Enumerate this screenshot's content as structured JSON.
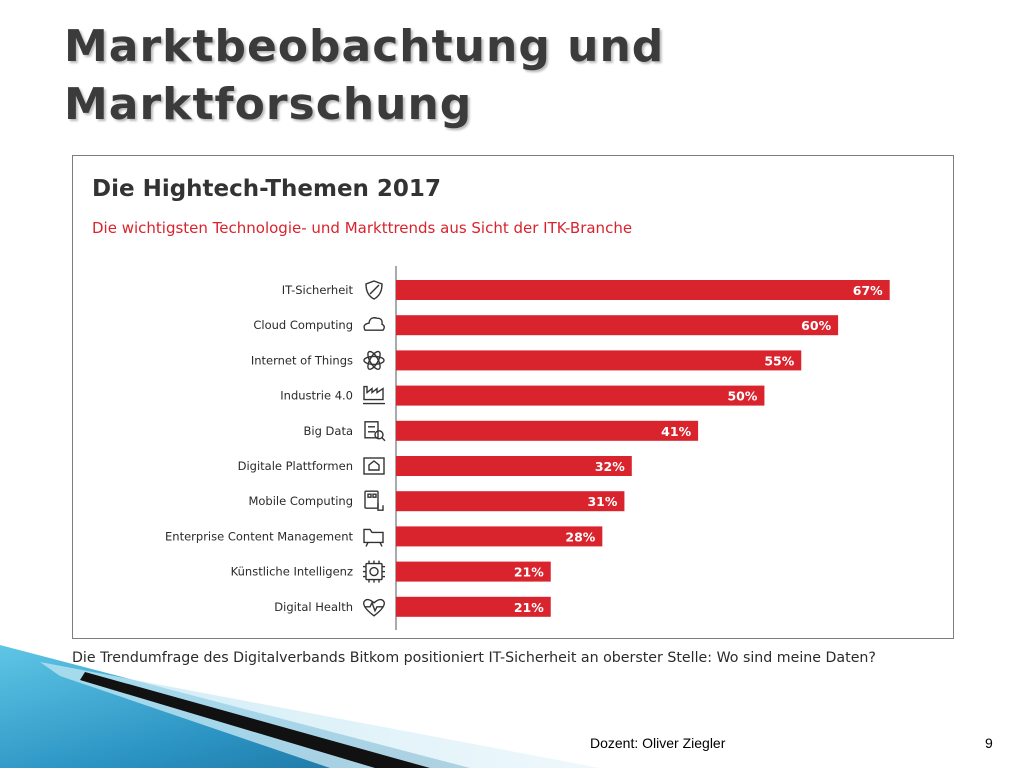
{
  "slide": {
    "title_line1": "Marktbeobachtung und",
    "title_line2": "Marktforschung",
    "caption": "Die Trendumfrage des Digitalverbands Bitkom positioniert IT-Sicherheit an oberster Stelle: Wo sind meine Daten?",
    "footer_name": "Dozent: Oliver Ziegler",
    "page_number": "9"
  },
  "colors": {
    "bar": "#d9232d",
    "subtitle": "#d9232d",
    "title": "#333333",
    "label": "#2a2a2a",
    "axis": "#555555"
  },
  "chart_data": {
    "type": "bar",
    "orientation": "horizontal",
    "title": "Die Hightech-Themen 2017",
    "subtitle": "Die wichtigsten Technologie- und Markttrends aus Sicht der ITK-Branche",
    "categories": [
      "IT-Sicherheit",
      "Cloud Computing",
      "Internet of Things",
      "Industrie 4.0",
      "Big Data",
      "Digitale Plattformen",
      "Mobile Computing",
      "Enterprise Content Management",
      "Künstliche Intelligenz",
      "Digital Health"
    ],
    "icons": [
      "shield-icon",
      "cloud-icon",
      "atom-icon",
      "factory-icon",
      "data-search-icon",
      "platform-house-icon",
      "mobile-touch-icon",
      "folder-icon",
      "chip-icon",
      "heart-pulse-icon"
    ],
    "values": [
      67,
      60,
      55,
      50,
      41,
      32,
      31,
      28,
      21,
      21
    ],
    "data_labels": [
      "67%",
      "60%",
      "55%",
      "50%",
      "41%",
      "32%",
      "31%",
      "28%",
      "21%",
      "21%"
    ],
    "unit": "%",
    "xlim": [
      0,
      76
    ],
    "grid": false,
    "legend": "none"
  }
}
